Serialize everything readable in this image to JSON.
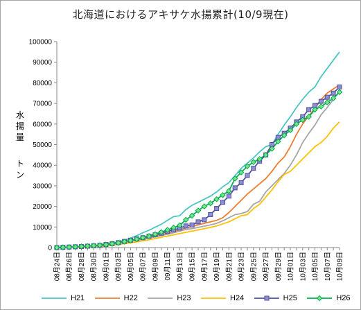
{
  "chart_data": {
    "type": "line",
    "title": "北海道におけるアキサケ水揚累計(10/9現在)",
    "ylabel_lines": [
      "水",
      "揚",
      "量",
      "ト",
      "ン"
    ],
    "ylim": [
      0,
      100000
    ],
    "yticks": [
      0,
      10000,
      20000,
      30000,
      40000,
      50000,
      60000,
      70000,
      80000,
      90000,
      100000
    ],
    "grid": false,
    "legend_position": "bottom",
    "categories": [
      "08月24日",
      "08月25日",
      "08月26日",
      "08月27日",
      "08月28日",
      "08月29日",
      "08月30日",
      "08月31日",
      "09月01日",
      "09月02日",
      "09月03日",
      "09月04日",
      "09月05日",
      "09月06日",
      "09月07日",
      "09月08日",
      "09月09日",
      "09月10日",
      "09月11日",
      "09月12日",
      "09月13日",
      "09月14日",
      "09月15日",
      "09月16日",
      "09月17日",
      "09月18日",
      "09月19日",
      "09月20日",
      "09月21日",
      "09月22日",
      "09月23日",
      "09月24日",
      "09月25日",
      "09月26日",
      "09月27日",
      "09月28日",
      "09月29日",
      "09月30日",
      "10月01日",
      "10月02日",
      "10月03日",
      "10月04日",
      "10月05日",
      "10月06日",
      "10月07日",
      "10月08日",
      "10月09日"
    ],
    "tick_labels": [
      "08月24日",
      "08月26日",
      "08月28日",
      "08月30日",
      "09月01日",
      "09月03日",
      "09月05日",
      "09月07日",
      "09月09日",
      "09月11日",
      "09月13日",
      "09月15日",
      "09月17日",
      "09月19日",
      "09月21日",
      "09月23日",
      "09月25日",
      "09月27日",
      "09月29日",
      "10月01日",
      "10月03日",
      "10月05日",
      "10月07日",
      "10月09日"
    ],
    "series": [
      {
        "name": "H21",
        "color": "#4bc4c4",
        "marker": "none",
        "values": [
          0,
          150,
          300,
          450,
          600,
          800,
          1000,
          1300,
          1700,
          2200,
          2800,
          3600,
          4600,
          5800,
          7200,
          8400,
          9900,
          11300,
          13200,
          15000,
          15500,
          18500,
          20500,
          22000,
          23500,
          25000,
          27000,
          29500,
          31500,
          35000,
          38500,
          41000,
          43500,
          46500,
          49000,
          50000,
          55000,
          59500,
          63500,
          68000,
          72000,
          75500,
          78000,
          83000,
          87000,
          91000,
          95000
        ]
      },
      {
        "name": "H22",
        "color": "#ed7d31",
        "marker": "none",
        "values": [
          0,
          100,
          200,
          300,
          400,
          500,
          700,
          900,
          1200,
          1600,
          2100,
          2600,
          3200,
          3800,
          4400,
          5000,
          5700,
          6300,
          7000,
          7800,
          8600,
          9500,
          10200,
          11000,
          11800,
          12500,
          13200,
          14500,
          17000,
          20000,
          23000,
          26000,
          28500,
          31000,
          33500,
          37000,
          41000,
          44000,
          49000,
          55000,
          60000,
          64000,
          67500,
          72000,
          75000,
          77000,
          79000
        ]
      },
      {
        "name": "H23",
        "color": "#a5a5a5",
        "marker": "none",
        "values": [
          0,
          100,
          200,
          300,
          450,
          600,
          800,
          1000,
          1300,
          1600,
          2000,
          2400,
          3000,
          3500,
          4000,
          4600,
          5200,
          5800,
          6500,
          7200,
          8000,
          8800,
          9200,
          9800,
          10400,
          11000,
          11800,
          13000,
          14500,
          16000,
          16500,
          17500,
          21000,
          22500,
          27000,
          30000,
          33000,
          36000,
          40000,
          45000,
          51000,
          55500,
          59500,
          64500,
          68000,
          72000,
          76000
        ]
      },
      {
        "name": "H24",
        "color": "#ffc000",
        "marker": "none",
        "values": [
          0,
          80,
          160,
          250,
          350,
          450,
          550,
          700,
          900,
          1200,
          1500,
          1900,
          2300,
          2800,
          3300,
          3800,
          4400,
          5000,
          5600,
          6200,
          6800,
          7400,
          8000,
          8600,
          9200,
          9800,
          10500,
          11500,
          12500,
          14000,
          15500,
          16000,
          19000,
          21000,
          24500,
          28000,
          32000,
          35500,
          37000,
          40000,
          43000,
          46000,
          49000,
          51000,
          54000,
          58000,
          61000
        ]
      },
      {
        "name": "H25",
        "color": "#4f4f9e",
        "marker": "square",
        "values": [
          0,
          120,
          250,
          380,
          520,
          680,
          880,
          1100,
          1500,
          1900,
          2400,
          3000,
          3600,
          4200,
          4800,
          5500,
          6200,
          7000,
          7800,
          8600,
          9500,
          10500,
          11000,
          12500,
          13500,
          16000,
          19000,
          22000,
          25000,
          29000,
          31500,
          35000,
          38500,
          42000,
          45000,
          50000,
          53500,
          55500,
          58000,
          61000,
          63500,
          67000,
          69000,
          71000,
          73000,
          75000,
          78000
        ]
      },
      {
        "name": "H26",
        "color": "#00b050",
        "marker": "diamond",
        "values": [
          0,
          130,
          260,
          400,
          550,
          720,
          920,
          1150,
          1450,
          1850,
          2300,
          2850,
          3450,
          4100,
          4800,
          5600,
          6500,
          7500,
          8600,
          9700,
          10800,
          13500,
          15500,
          18000,
          20000,
          21500,
          23500,
          25500,
          27500,
          33500,
          36500,
          39500,
          41500,
          43000,
          45000,
          48000,
          51500,
          54500,
          57000,
          60000,
          62000,
          63500,
          67000,
          68500,
          70500,
          72500,
          75500
        ]
      }
    ]
  }
}
